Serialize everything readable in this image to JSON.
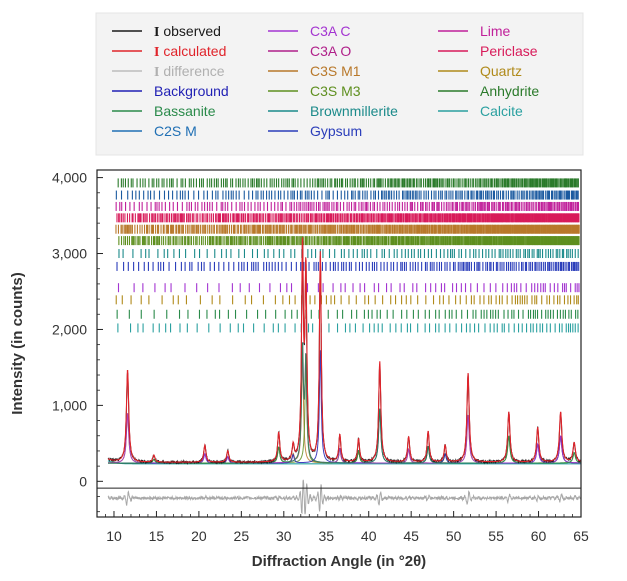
{
  "chart_data": {
    "type": "line",
    "xlabel": "Diffraction Angle (in °2θ)",
    "ylabel": "Intensity (in counts)",
    "xlim": [
      8,
      65
    ],
    "ylim": [
      -470,
      4100
    ],
    "grid": false,
    "legend_position": "top",
    "x_ticks": [
      10,
      15,
      20,
      25,
      30,
      35,
      40,
      45,
      50,
      55,
      60,
      65
    ],
    "y_ticks": [
      0,
      1000,
      2000,
      3000,
      4000
    ],
    "x_tick_labels": [
      "10",
      "15",
      "20",
      "25",
      "30",
      "35",
      "40",
      "45",
      "50",
      "55",
      "60",
      "65"
    ],
    "y_tick_labels": [
      "0",
      "1,000",
      "2,000",
      "3,000",
      "4,000"
    ],
    "legend": [
      {
        "prefix": "I",
        "label": " observed",
        "color": "#1a1a1a",
        "text_color": "#1a1a1a",
        "weight": "bold"
      },
      {
        "prefix": "I",
        "label": " calculated",
        "color": "#e0242b",
        "text_color": "#e0242b"
      },
      {
        "prefix": "I",
        "label": " difference",
        "color": "#bdbdbd",
        "text_color": "#b0b0b0"
      },
      {
        "label": "Background",
        "color": "#1f1fb4",
        "text_color": "#1f1fb4"
      },
      {
        "label": "Bassanite",
        "color": "#2a8a4a",
        "text_color": "#2a8a4a"
      },
      {
        "label": "C2S M",
        "color": "#1f6fb4",
        "text_color": "#1f6fb4"
      },
      {
        "label": "C3A C",
        "color": "#a334d1",
        "text_color": "#a334d1"
      },
      {
        "label": "C3A O",
        "color": "#b0208a",
        "text_color": "#b0208a"
      },
      {
        "label": "C3S M1",
        "color": "#b8782a",
        "text_color": "#b8782a"
      },
      {
        "label": "C3S M3",
        "color": "#5e8f1f",
        "text_color": "#5e8f1f"
      },
      {
        "label": "Brownmillerite",
        "color": "#1b8a8a",
        "text_color": "#1b8a8a"
      },
      {
        "label": "Gypsum",
        "color": "#2a3dba",
        "text_color": "#2a3dba"
      },
      {
        "label": "Lime",
        "color": "#c0209a",
        "text_color": "#c0209a"
      },
      {
        "label": "Periclase",
        "color": "#d81b5a",
        "text_color": "#d81b5a"
      },
      {
        "label": "Quartz",
        "color": "#b08a1a",
        "text_color": "#b08a1a"
      },
      {
        "label": "Anhydrite",
        "color": "#2a7a2a",
        "text_color": "#2a7a2a"
      },
      {
        "label": "Calcite",
        "color": "#2aa0a0",
        "text_color": "#2aa0a0"
      }
    ],
    "background_level": 250,
    "peaks": [
      {
        "x": 11.6,
        "h": 1200,
        "w": 0.16
      },
      {
        "x": 14.7,
        "h": 90,
        "w": 0.15
      },
      {
        "x": 20.7,
        "h": 220,
        "w": 0.15
      },
      {
        "x": 23.4,
        "h": 150,
        "w": 0.15
      },
      {
        "x": 29.4,
        "h": 380,
        "w": 0.15
      },
      {
        "x": 31.1,
        "h": 200,
        "w": 0.14
      },
      {
        "x": 32.2,
        "h": 2700,
        "w": 0.13
      },
      {
        "x": 32.6,
        "h": 2400,
        "w": 0.13
      },
      {
        "x": 34.3,
        "h": 2700,
        "w": 0.13
      },
      {
        "x": 36.6,
        "h": 350,
        "w": 0.14
      },
      {
        "x": 38.8,
        "h": 300,
        "w": 0.14
      },
      {
        "x": 41.3,
        "h": 1300,
        "w": 0.15
      },
      {
        "x": 44.7,
        "h": 330,
        "w": 0.15
      },
      {
        "x": 47.0,
        "h": 400,
        "w": 0.15
      },
      {
        "x": 49.0,
        "h": 220,
        "w": 0.15
      },
      {
        "x": 51.7,
        "h": 1150,
        "w": 0.16
      },
      {
        "x": 56.5,
        "h": 650,
        "w": 0.16
      },
      {
        "x": 59.9,
        "h": 450,
        "w": 0.16
      },
      {
        "x": 62.6,
        "h": 650,
        "w": 0.17
      },
      {
        "x": 64.2,
        "h": 250,
        "w": 0.17
      }
    ],
    "tick_rows": [
      {
        "name": "Anhydrite",
        "y": 3930,
        "color": "#2a7a2a",
        "density": 0.9
      },
      {
        "name": "Calcite",
        "y": 3770,
        "color": "#1b5aa0",
        "density": 0.8
      },
      {
        "name": "Lime",
        "y": 3620,
        "color": "#c0209a",
        "density": 0.85
      },
      {
        "name": "Periclase",
        "y": 3470,
        "color": "#d81b5a",
        "density": 1.0
      },
      {
        "name": "Quartz",
        "y": 3320,
        "color": "#b8782a",
        "density": 1.0
      },
      {
        "name": "C3S M3",
        "y": 3170,
        "color": "#5e8f1f",
        "density": 1.0
      },
      {
        "name": "Brownmillerite",
        "y": 3000,
        "color": "#1b8a8a",
        "density": 0.6
      },
      {
        "name": "Gypsum",
        "y": 2830,
        "color": "#2a3dba",
        "density": 0.75
      },
      {
        "name": "C3A C",
        "y": 2550,
        "color": "#a334d1",
        "density": 0.25
      },
      {
        "name": "C3A O",
        "y": 2390,
        "color": "#b08a1a",
        "density": 0.3
      },
      {
        "name": "Bassanite",
        "y": 2200,
        "color": "#2a8a4a",
        "density": 0.35
      },
      {
        "name": "C2S M",
        "y": 2020,
        "color": "#2aa0a0",
        "density": 0.35
      }
    ],
    "difference_level": -220,
    "baseline": -90,
    "x_edges": [
      9.3,
      65.0
    ]
  }
}
